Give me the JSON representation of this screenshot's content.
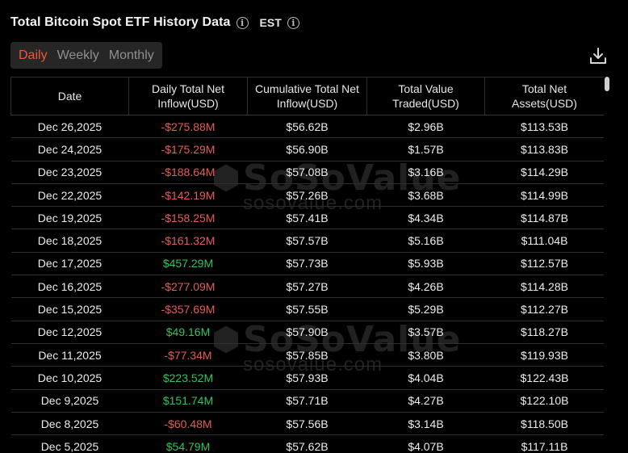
{
  "header": {
    "title": "Total Bitcoin Spot ETF History Data",
    "timezone": "EST"
  },
  "tabs": [
    {
      "label": "Daily",
      "active": true
    },
    {
      "label": "Weekly",
      "active": false
    },
    {
      "label": "Monthly",
      "active": false
    }
  ],
  "table": {
    "columns": [
      [
        "Date"
      ],
      [
        "Daily Total Net",
        "Inflow(USD)"
      ],
      [
        "Cumulative Total Net",
        "Inflow(USD)"
      ],
      [
        "Total Value",
        "Traded(USD)"
      ],
      [
        "Total Net",
        "Assets(USD)"
      ]
    ],
    "rows": [
      {
        "date": "Dec 26,2025",
        "inflow": "-$275.88M",
        "sign": "neg",
        "cumulative": "$56.62B",
        "traded": "$2.96B",
        "assets": "$113.53B"
      },
      {
        "date": "Dec 24,2025",
        "inflow": "-$175.29M",
        "sign": "neg",
        "cumulative": "$56.90B",
        "traded": "$1.57B",
        "assets": "$113.83B"
      },
      {
        "date": "Dec 23,2025",
        "inflow": "-$188.64M",
        "sign": "neg",
        "cumulative": "$57.08B",
        "traded": "$3.16B",
        "assets": "$114.29B"
      },
      {
        "date": "Dec 22,2025",
        "inflow": "-$142.19M",
        "sign": "neg",
        "cumulative": "$57.26B",
        "traded": "$3.68B",
        "assets": "$114.99B"
      },
      {
        "date": "Dec 19,2025",
        "inflow": "-$158.25M",
        "sign": "neg",
        "cumulative": "$57.41B",
        "traded": "$4.34B",
        "assets": "$114.87B"
      },
      {
        "date": "Dec 18,2025",
        "inflow": "-$161.32M",
        "sign": "neg",
        "cumulative": "$57.57B",
        "traded": "$5.16B",
        "assets": "$111.04B"
      },
      {
        "date": "Dec 17,2025",
        "inflow": "$457.29M",
        "sign": "pos",
        "cumulative": "$57.73B",
        "traded": "$5.93B",
        "assets": "$112.57B"
      },
      {
        "date": "Dec 16,2025",
        "inflow": "-$277.09M",
        "sign": "neg",
        "cumulative": "$57.27B",
        "traded": "$4.26B",
        "assets": "$114.28B"
      },
      {
        "date": "Dec 15,2025",
        "inflow": "-$357.69M",
        "sign": "neg",
        "cumulative": "$57.55B",
        "traded": "$5.29B",
        "assets": "$112.27B"
      },
      {
        "date": "Dec 12,2025",
        "inflow": "$49.16M",
        "sign": "pos",
        "cumulative": "$57.90B",
        "traded": "$3.57B",
        "assets": "$118.27B"
      },
      {
        "date": "Dec 11,2025",
        "inflow": "-$77.34M",
        "sign": "neg",
        "cumulative": "$57.85B",
        "traded": "$3.80B",
        "assets": "$119.93B"
      },
      {
        "date": "Dec 10,2025",
        "inflow": "$223.52M",
        "sign": "pos",
        "cumulative": "$57.93B",
        "traded": "$4.04B",
        "assets": "$122.43B"
      },
      {
        "date": "Dec 9,2025",
        "inflow": "$151.74M",
        "sign": "pos",
        "cumulative": "$57.71B",
        "traded": "$4.27B",
        "assets": "$122.10B"
      },
      {
        "date": "Dec 8,2025",
        "inflow": "-$60.48M",
        "sign": "neg",
        "cumulative": "$57.56B",
        "traded": "$3.14B",
        "assets": "$118.50B"
      },
      {
        "date": "Dec 5,2025",
        "inflow": "$54.79M",
        "sign": "pos",
        "cumulative": "$57.62B",
        "traded": "$4.07B",
        "assets": "$117.11B"
      }
    ]
  },
  "watermark": {
    "brand": "SoSoValue",
    "url": "sosovalue.com"
  },
  "icons": {
    "info": "info-icon",
    "download": "download-icon"
  },
  "colors": {
    "accent": "#ec5a36",
    "negative": "#e35d55",
    "positive": "#32c25e",
    "background": "#000000"
  }
}
